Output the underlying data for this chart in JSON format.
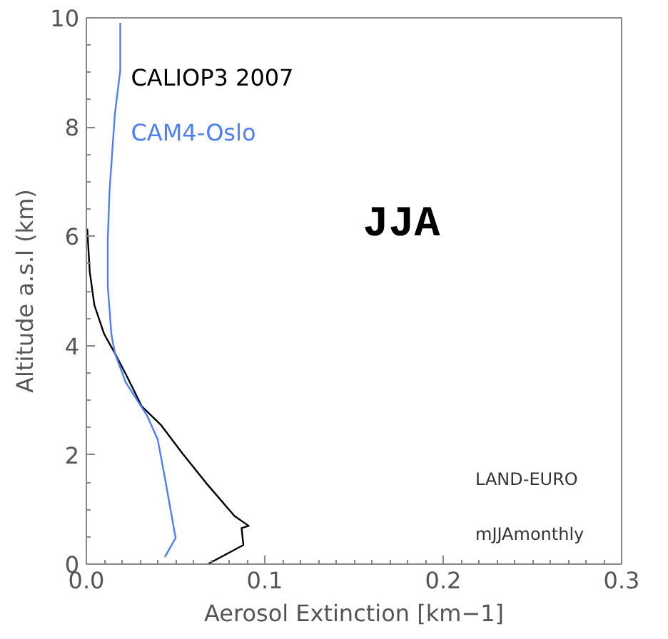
{
  "chart_data": {
    "type": "line",
    "xlabel": "Aerosol Extinction [km−1]",
    "ylabel": "Altitude a.s.l (km)",
    "xlim": [
      0.0,
      0.3
    ],
    "xticks": [
      {
        "value": 0.0,
        "label": "0.0"
      },
      0.1,
      0.2,
      0.3
    ],
    "ylim": [
      0,
      10
    ],
    "yticks": [
      0,
      2,
      4,
      6,
      8,
      10
    ],
    "grid": false,
    "legend": "top left",
    "series": [
      {
        "name": "CALIOP3 2007",
        "color": "#000000",
        "x": [
          0.068,
          0.088,
          0.087,
          0.091,
          0.083,
          0.067,
          0.054,
          0.042,
          0.031,
          0.023,
          0.016,
          0.01,
          0.0045,
          0.0019,
          0.0005
        ],
        "values": [
          0,
          0.35,
          0.66,
          0.7,
          0.88,
          1.49,
          2.02,
          2.54,
          2.89,
          3.42,
          3.86,
          4.21,
          4.74,
          5.35,
          6.14
        ]
      },
      {
        "name": "CAM4-Oslo",
        "color": "#4f7fff",
        "x": [
          0.044,
          0.05,
          0.044,
          0.04,
          0.034,
          0.022,
          0.016,
          0.014,
          0.012,
          0.012,
          0.013,
          0.016,
          0.019,
          0.019
        ],
        "values": [
          0.13,
          0.48,
          1.58,
          2.28,
          2.72,
          3.33,
          3.86,
          4.21,
          5.09,
          5.96,
          6.84,
          8.25,
          9.04,
          9.91
        ]
      }
    ],
    "annotations": [
      "JJA",
      "LAND-EURO",
      "mJJAmonthly"
    ]
  }
}
